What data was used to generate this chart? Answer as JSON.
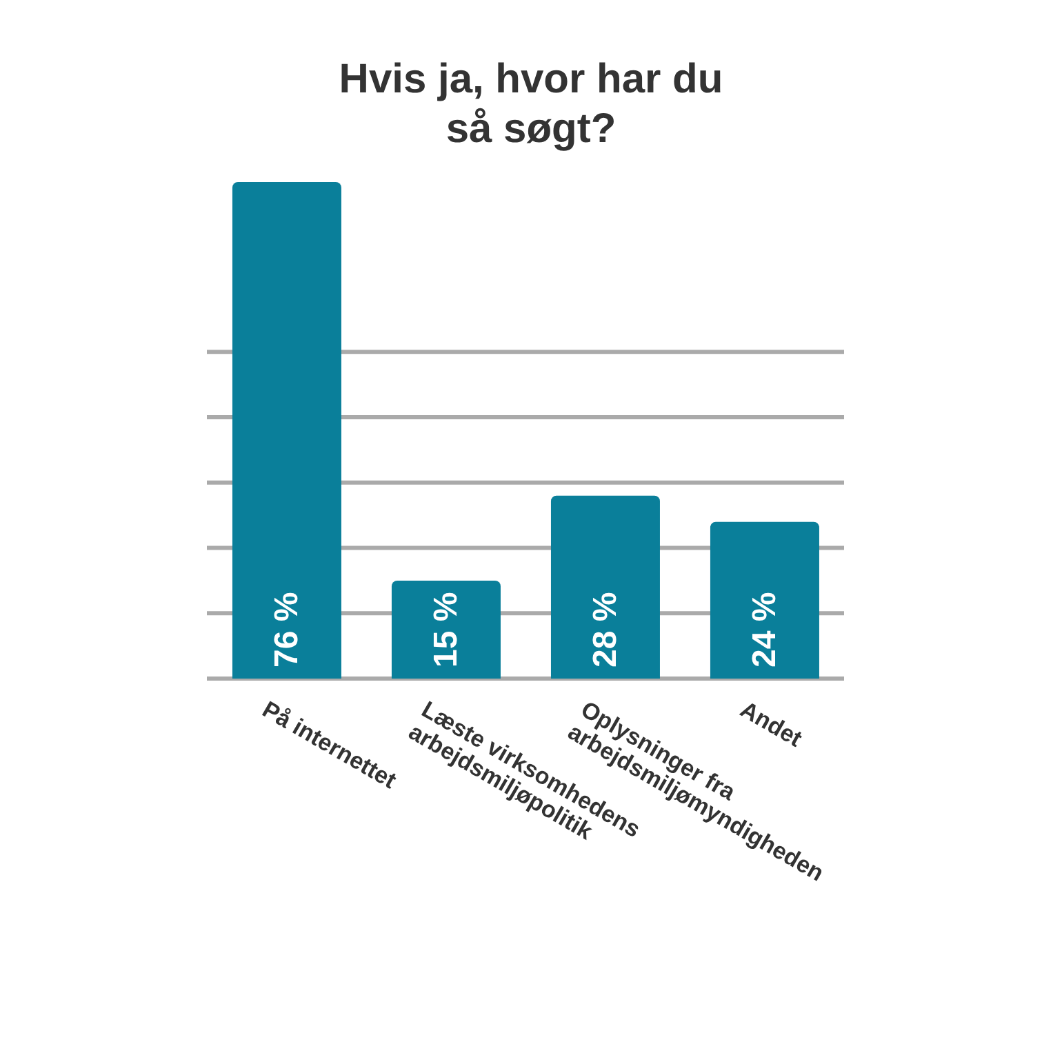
{
  "chart_data": {
    "type": "bar",
    "title": "Hvis ja, hvor har du så søgt?",
    "categories": [
      "På internettet",
      "Læste virksomhedens arbejdsmiljøpolitik",
      "Oplysninger fra arbejdsmiljømyndigheden",
      "Andet"
    ],
    "values": [
      76,
      15,
      28,
      24
    ],
    "value_labels": [
      "76 %",
      "15 %",
      "28 %",
      "24 %"
    ],
    "color": "#0a7f9a",
    "yticks": [
      {
        "value": 0,
        "label": null
      },
      {
        "value": 10,
        "label": null
      },
      {
        "value": 20,
        "label": null
      },
      {
        "value": 30,
        "label": null
      },
      {
        "value": 40,
        "label": null
      },
      {
        "value": 50,
        "label": null
      }
    ],
    "grid": "y",
    "tick_labels": "x"
  }
}
